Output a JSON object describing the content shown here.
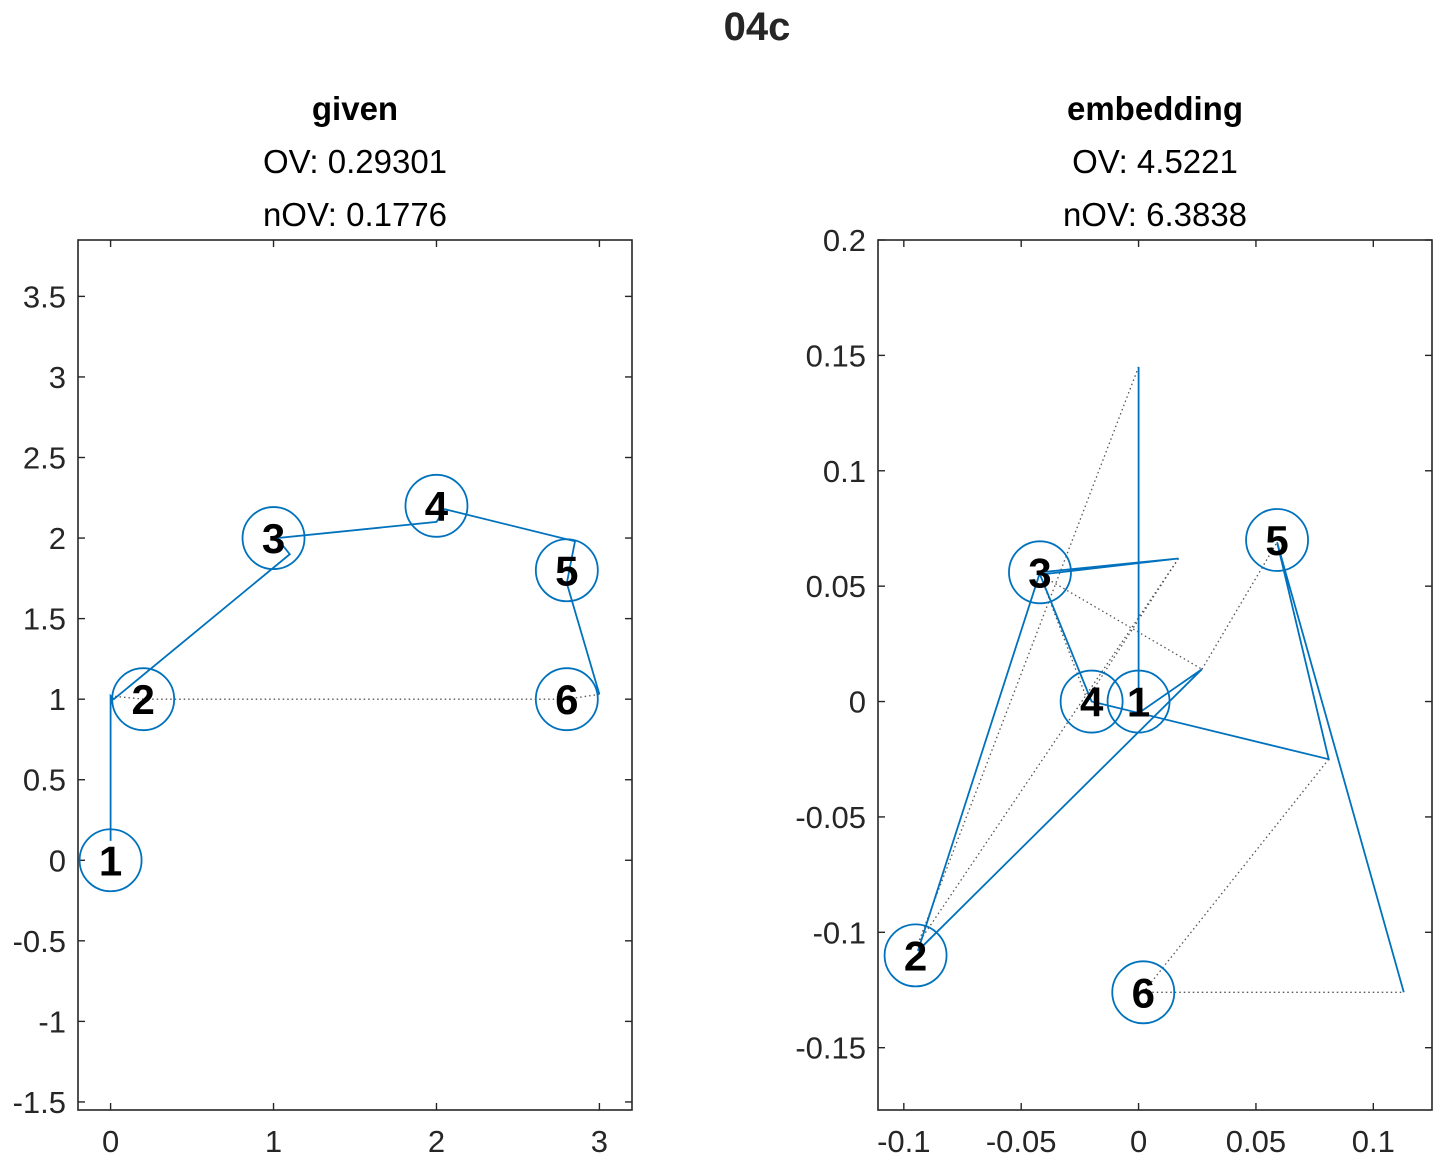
{
  "figure": {
    "title": "04c"
  },
  "colors": {
    "edge": "#0072BD",
    "dotted": "#555555",
    "axis": "#262626",
    "text": "#000000"
  },
  "chart_data": [
    {
      "type": "scatter",
      "title": "given",
      "subtitle_lines": [
        "OV: 0.29301",
        "nOV: 0.1776"
      ],
      "xlim": [
        -0.2,
        3.2
      ],
      "ylim": [
        -1.55,
        3.85
      ],
      "xticks": [
        0,
        1,
        2,
        3
      ],
      "yticks": [
        -1.5,
        -1,
        -0.5,
        0,
        0.5,
        1,
        1.5,
        2,
        2.5,
        3,
        3.5
      ],
      "xtick_labels": [
        "0",
        "1",
        "2",
        "3"
      ],
      "ytick_labels": [
        "-1.5",
        "-1",
        "-0.5",
        "0",
        "0.5",
        "1",
        "1.5",
        "2",
        "2.5",
        "3",
        "3.5"
      ],
      "nodes": [
        {
          "label": "1",
          "x": 0,
          "y": 0
        },
        {
          "label": "2",
          "x": 0.2,
          "y": 1
        },
        {
          "label": "3",
          "x": 1,
          "y": 2
        },
        {
          "label": "4",
          "x": 2,
          "y": 2.2
        },
        {
          "label": "5",
          "x": 2.8,
          "y": 1.8
        },
        {
          "label": "6",
          "x": 2.8,
          "y": 1
        }
      ],
      "edges": [
        [
          0,
          0.12
        ],
        [
          0,
          1.02
        ],
        [
          0.02,
          1.0
        ],
        [
          1.1,
          1.9
        ],
        [
          1.02,
          2.0
        ],
        [
          2.0,
          2.1
        ],
        [
          2.05,
          2.18
        ],
        [
          2.85,
          1.98
        ],
        [
          2.8,
          1.72
        ],
        [
          3.0,
          1.03
        ]
      ],
      "dotted": [
        [
          0.0,
          1.02
        ],
        [
          0.2,
          1.0
        ],
        [
          2.8,
          1.0
        ],
        [
          3.0,
          1.03
        ]
      ]
    },
    {
      "type": "scatter",
      "title": "embedding",
      "subtitle_lines": [
        "OV: 4.5221",
        "nOV: 6.3838"
      ],
      "xlim": [
        -0.111,
        0.125
      ],
      "ylim": [
        -0.177,
        0.2
      ],
      "xticks": [
        -0.1,
        -0.05,
        0,
        0.05,
        0.1
      ],
      "yticks": [
        -0.15,
        -0.1,
        -0.05,
        0,
        0.05,
        0.1,
        0.15,
        0.2
      ],
      "xtick_labels": [
        "-0.1",
        "-0.05",
        "0",
        "0.05",
        "0.1"
      ],
      "ytick_labels": [
        "-0.15",
        "-0.1",
        "-0.05",
        "0",
        "0.05",
        "0.1",
        "0.15",
        "0.2"
      ],
      "nodes": [
        {
          "label": "1",
          "x": 0,
          "y": 0
        },
        {
          "label": "2",
          "x": -0.095,
          "y": -0.11
        },
        {
          "label": "3",
          "x": -0.042,
          "y": 0.056
        },
        {
          "label": "4",
          "x": -0.02,
          "y": 0
        },
        {
          "label": "5",
          "x": 0.059,
          "y": 0.07
        },
        {
          "label": "6",
          "x": 0.002,
          "y": -0.126
        }
      ],
      "edges": [
        [
          0,
          0.145
        ],
        [
          0,
          -0.003
        ],
        [
          0,
          -0.005
        ],
        [
          0.027,
          0.014
        ],
        [
          -0.094,
          -0.108
        ],
        [
          -0.042,
          0.056
        ],
        [
          0.017,
          0.062
        ],
        [
          -0.042,
          0.055
        ],
        [
          -0.02,
          0
        ],
        [
          0.081,
          -0.025
        ],
        [
          0.059,
          0.069
        ],
        [
          0.113,
          -0.126
        ]
      ],
      "dotted": [
        [
          0,
          0.145
        ],
        [
          -0.094,
          -0.105
        ],
        [
          0.017,
          0.062
        ],
        [
          -0.022,
          0.001
        ],
        [
          -0.042,
          0.055
        ],
        [
          0.027,
          0.014
        ],
        [
          0.059,
          0.069
        ],
        [
          0.081,
          -0.025
        ],
        [
          0.002,
          -0.126
        ],
        [
          0.113,
          -0.126
        ]
      ]
    }
  ]
}
